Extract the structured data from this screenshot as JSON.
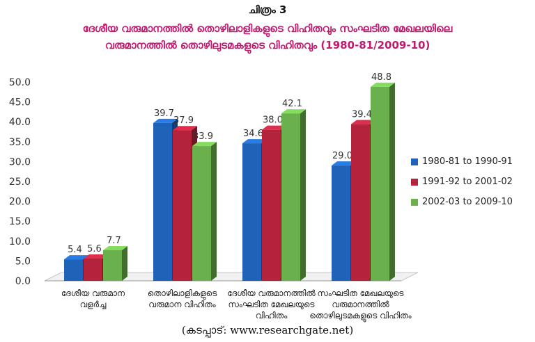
{
  "figure_label": "ചിത്രം 3",
  "title_lines": [
    "ദേശീയ വരുമാനത്തിൽ തൊഴിലാളികളുടെ വിഹിതവും സംഘടിത മേഖലയിലെ",
    "വരുമാനത്തിൽ തൊഴിലുടമകളുടെ വിഹിതവും (1980-81/2009-10)"
  ],
  "source": "(കടപ്പാട്: www.researchgate.net)",
  "colors": {
    "title": "#c0186f",
    "series": [
      "#1f63b8",
      "#b3243c",
      "#6ab04c"
    ]
  },
  "chart_data": {
    "type": "bar",
    "categories": [
      [
        "ദേശീയ വരുമാന",
        "വളർച്ച"
      ],
      [
        "തൊഴിലാളികളുടെ",
        "വരുമാന വിഹിതം"
      ],
      [
        "ദേശീയ വരുമാനത്തിൽ",
        "സംഘടിത മേഖലയുടെ",
        "വിഹിതം"
      ],
      [
        "സംഘടിത മേഖലയുടെ",
        "വരുമാനത്തിൽ",
        "തൊഴിലുടമകളുടെ വിഹിതം"
      ]
    ],
    "series": [
      {
        "name": "1980-81 to 1990-91",
        "values": [
          5.4,
          39.7,
          34.6,
          29.0
        ],
        "labels": [
          "5.4",
          "39.7",
          "34.6",
          "29.0"
        ]
      },
      {
        "name": "1991-92 to 2001-02",
        "values": [
          5.6,
          37.9,
          38.0,
          39.4
        ],
        "labels": [
          "5.6",
          "37.9",
          "38.0",
          "39.4"
        ]
      },
      {
        "name": "2002-03 to 2009-10",
        "values": [
          7.7,
          33.9,
          42.1,
          48.8
        ],
        "labels": [
          "7.7",
          "33.9",
          "42.1",
          "48.8"
        ]
      }
    ],
    "ylim": [
      0,
      50
    ],
    "yticks": [
      "0.0",
      "5.0",
      "10.0",
      "15.0",
      "20.0",
      "25.0",
      "30.0",
      "35.0",
      "40.0",
      "45.0",
      "50.0"
    ],
    "grid": false,
    "legend_position": "right"
  }
}
